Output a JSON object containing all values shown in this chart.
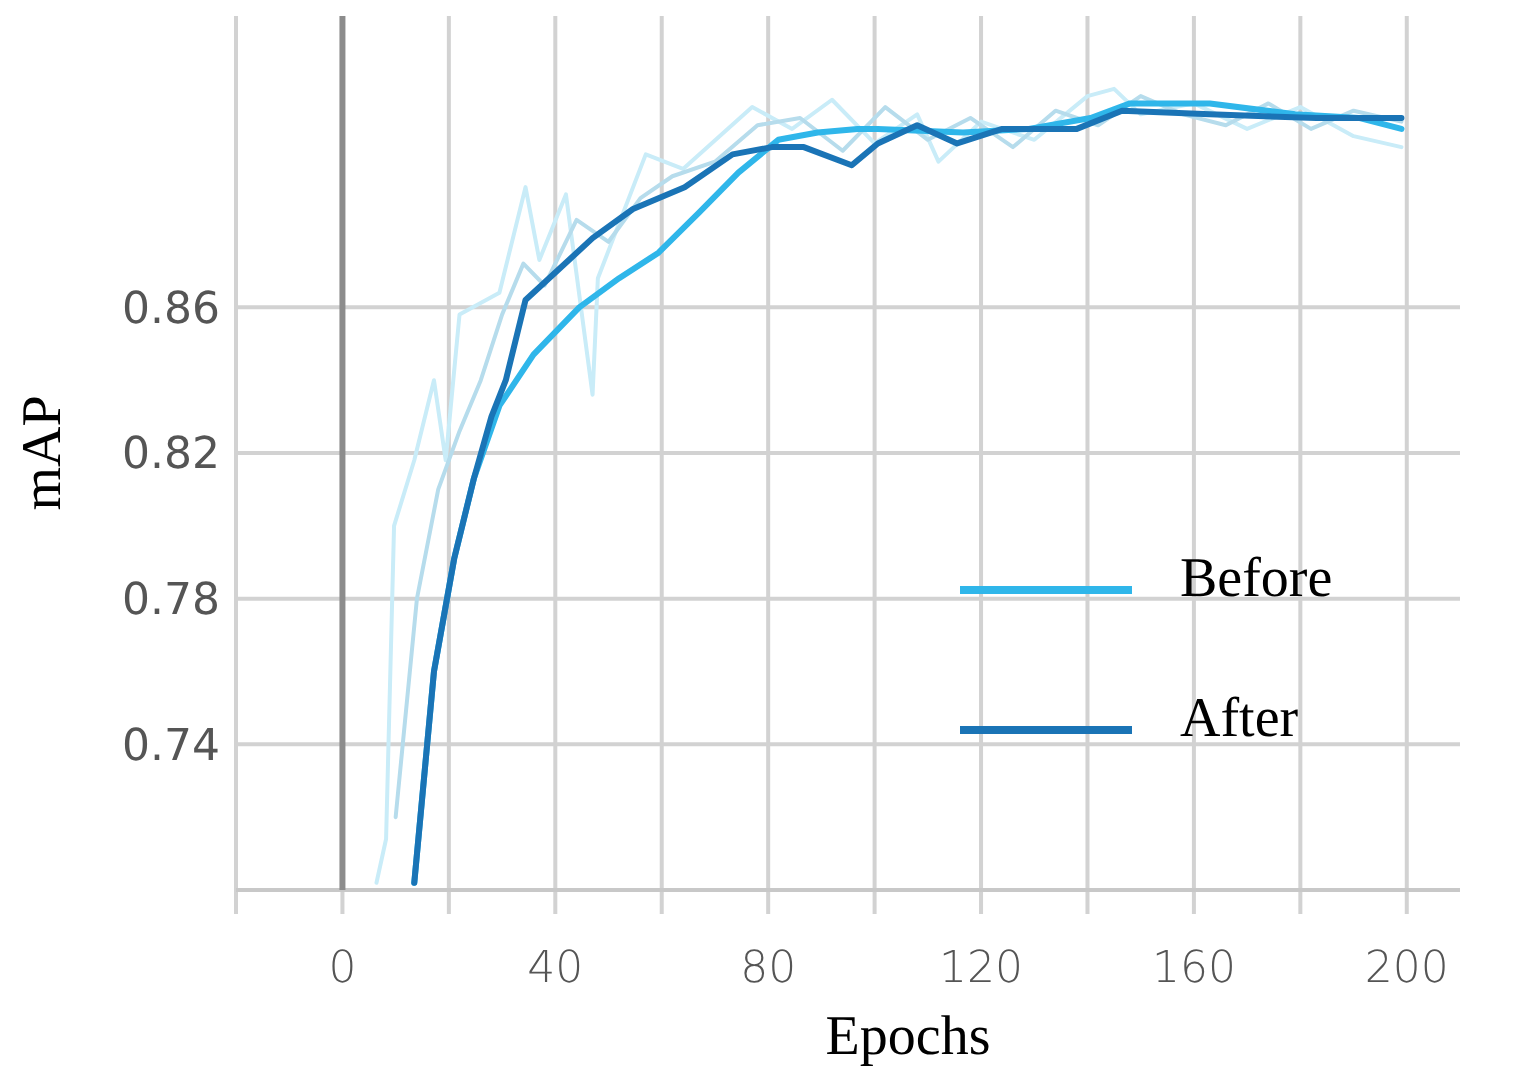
{
  "chart_data": {
    "type": "line",
    "xlabel": "Epochs",
    "ylabel": "mAP",
    "xlim": [
      -20,
      210
    ],
    "ylim": [
      0.7,
      0.94
    ],
    "xticks": [
      {
        "value": -20,
        "label": null
      },
      0,
      {
        "value": 20,
        "label": null
      },
      40,
      {
        "value": 60,
        "label": null
      },
      80,
      {
        "value": 100,
        "label": null
      },
      120,
      {
        "value": 140,
        "label": null
      },
      160,
      {
        "value": 180,
        "label": null
      },
      200
    ],
    "yticks": [
      0.74,
      0.78,
      0.82,
      0.86
    ],
    "grid": true,
    "legend": "bottom right",
    "line_style": "solid",
    "marker": "none",
    "ref_lines": [
      {
        "axis": "x",
        "value": 0,
        "color": "#8c8c8c"
      }
    ],
    "series": [
      {
        "color": "#c9ecf8",
        "x": [
          6.4,
          8.2,
          9.7,
          13.5,
          17.2,
          19.4,
          22,
          29.5,
          34.4,
          37,
          42,
          47,
          48,
          57,
          64,
          77,
          84.5,
          92,
          100,
          108,
          112,
          120,
          130,
          140,
          145,
          150,
          160,
          170,
          180,
          190,
          199
        ],
        "values": [
          0.702,
          0.714,
          0.8,
          0.818,
          0.84,
          0.818,
          0.858,
          0.864,
          0.893,
          0.873,
          0.891,
          0.836,
          0.868,
          0.902,
          0.898,
          0.915,
          0.909,
          0.917,
          0.905,
          0.913,
          0.9,
          0.911,
          0.906,
          0.918,
          0.92,
          0.913,
          0.916,
          0.909,
          0.915,
          0.907,
          0.904
        ]
      },
      {
        "color": "#b6dcec",
        "x": [
          10,
          14,
          18,
          22,
          26,
          30,
          34,
          38,
          44,
          50,
          56,
          62,
          70,
          78,
          86,
          94,
          102,
          110,
          118,
          126,
          134,
          142,
          150,
          158,
          166,
          174,
          182,
          190,
          199
        ],
        "values": [
          0.72,
          0.78,
          0.81,
          0.826,
          0.84,
          0.858,
          0.872,
          0.866,
          0.884,
          0.878,
          0.89,
          0.896,
          0.9,
          0.91,
          0.912,
          0.903,
          0.915,
          0.906,
          0.912,
          0.904,
          0.914,
          0.91,
          0.918,
          0.913,
          0.91,
          0.916,
          0.909,
          0.914,
          0.911
        ]
      },
      {
        "name": "Before",
        "color": "#2fb6ea",
        "x": [
          13.5,
          17.2,
          21,
          24.7,
          29.5,
          35.9,
          44.5,
          52,
          59.4,
          67,
          74.4,
          81.9,
          89.3,
          96.8,
          100.6,
          116.6,
          129,
          140.6,
          148,
          163,
          179,
          191,
          199
        ],
        "values": [
          0.702,
          0.76,
          0.791,
          0.813,
          0.833,
          0.847,
          0.86,
          0.868,
          0.875,
          0.886,
          0.897,
          0.906,
          0.908,
          0.909,
          0.909,
          0.908,
          0.909,
          0.912,
          0.916,
          0.916,
          0.913,
          0.912,
          0.909
        ]
      },
      {
        "name": "After",
        "color": "#1a74b6",
        "x": [
          13.5,
          17.2,
          21,
          24.7,
          28,
          30.7,
          34.4,
          39.6,
          47,
          54.6,
          64.3,
          73.3,
          80.7,
          86.7,
          95.7,
          100.6,
          108,
          115.5,
          124,
          138,
          146.5,
          163,
          183,
          199
        ],
        "values": [
          0.702,
          0.76,
          0.791,
          0.813,
          0.83,
          0.84,
          0.862,
          0.869,
          0.879,
          0.887,
          0.893,
          0.902,
          0.904,
          0.904,
          0.899,
          0.905,
          0.91,
          0.905,
          0.909,
          0.909,
          0.914,
          0.913,
          0.912,
          0.912
        ]
      }
    ]
  }
}
